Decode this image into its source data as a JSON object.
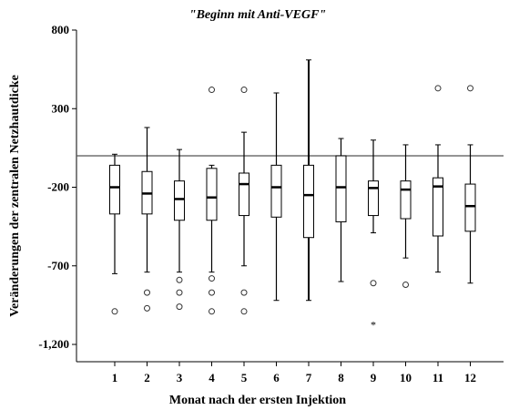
{
  "chart_data": {
    "type": "boxplot",
    "title": "\"Beginn mit Anti-VEGF\"",
    "xlabel": "Monat nach der ersten Injektion",
    "ylabel": "Veränderungen der zentralen Netzhautdicke",
    "ylim": [
      -1310,
      800
    ],
    "yticks": [
      800,
      300,
      -200,
      -700,
      -1200
    ],
    "ytick_labels": [
      "800",
      "300",
      "-200",
      "-700",
      "-1,200"
    ],
    "reference_line": 0,
    "categories": [
      "1",
      "2",
      "3",
      "4",
      "5",
      "6",
      "7",
      "8",
      "9",
      "10",
      "11",
      "12"
    ],
    "boxes": [
      {
        "whisker_low": -750,
        "q1": -370,
        "median": -200,
        "q3": -60,
        "whisker_high": 10,
        "outliers": [
          -990
        ],
        "extremes": []
      },
      {
        "whisker_low": -740,
        "q1": -370,
        "median": -240,
        "q3": -100,
        "whisker_high": 180,
        "outliers": [
          -870,
          -970
        ],
        "extremes": []
      },
      {
        "whisker_low": -740,
        "q1": -410,
        "median": -275,
        "q3": -160,
        "whisker_high": 40,
        "outliers": [
          -790,
          -870,
          -960
        ],
        "extremes": []
      },
      {
        "whisker_low": -740,
        "q1": -410,
        "median": -265,
        "q3": -80,
        "whisker_high": -60,
        "outliers": [
          -780,
          -870,
          -990,
          420
        ],
        "extremes": []
      },
      {
        "whisker_low": -700,
        "q1": -380,
        "median": -180,
        "q3": -110,
        "whisker_high": 150,
        "outliers": [
          -870,
          -990,
          420
        ],
        "extremes": []
      },
      {
        "whisker_low": -920,
        "q1": -390,
        "median": -200,
        "q3": -60,
        "whisker_high": 400,
        "outliers": [],
        "extremes": []
      },
      {
        "whisker_low": -920,
        "q1": -520,
        "median": -250,
        "q3": -60,
        "whisker_high": 610,
        "outliers": [],
        "extremes": []
      },
      {
        "whisker_low": -800,
        "q1": -420,
        "median": -200,
        "q3": 0,
        "whisker_high": 110,
        "outliers": [],
        "extremes": []
      },
      {
        "whisker_low": -490,
        "q1": -380,
        "median": -205,
        "q3": -160,
        "whisker_high": 100,
        "outliers": [
          -810
        ],
        "extremes": [
          -1070
        ]
      },
      {
        "whisker_low": -650,
        "q1": -400,
        "median": -215,
        "q3": -160,
        "whisker_high": 70,
        "outliers": [
          -820
        ],
        "extremes": []
      },
      {
        "whisker_low": -740,
        "q1": -510,
        "median": -195,
        "q3": -140,
        "whisker_high": 70,
        "outliers": [
          430
        ],
        "extremes": []
      },
      {
        "whisker_low": -810,
        "q1": -480,
        "median": -320,
        "q3": -180,
        "whisker_high": 70,
        "outliers": [
          430
        ],
        "extremes": []
      }
    ]
  }
}
